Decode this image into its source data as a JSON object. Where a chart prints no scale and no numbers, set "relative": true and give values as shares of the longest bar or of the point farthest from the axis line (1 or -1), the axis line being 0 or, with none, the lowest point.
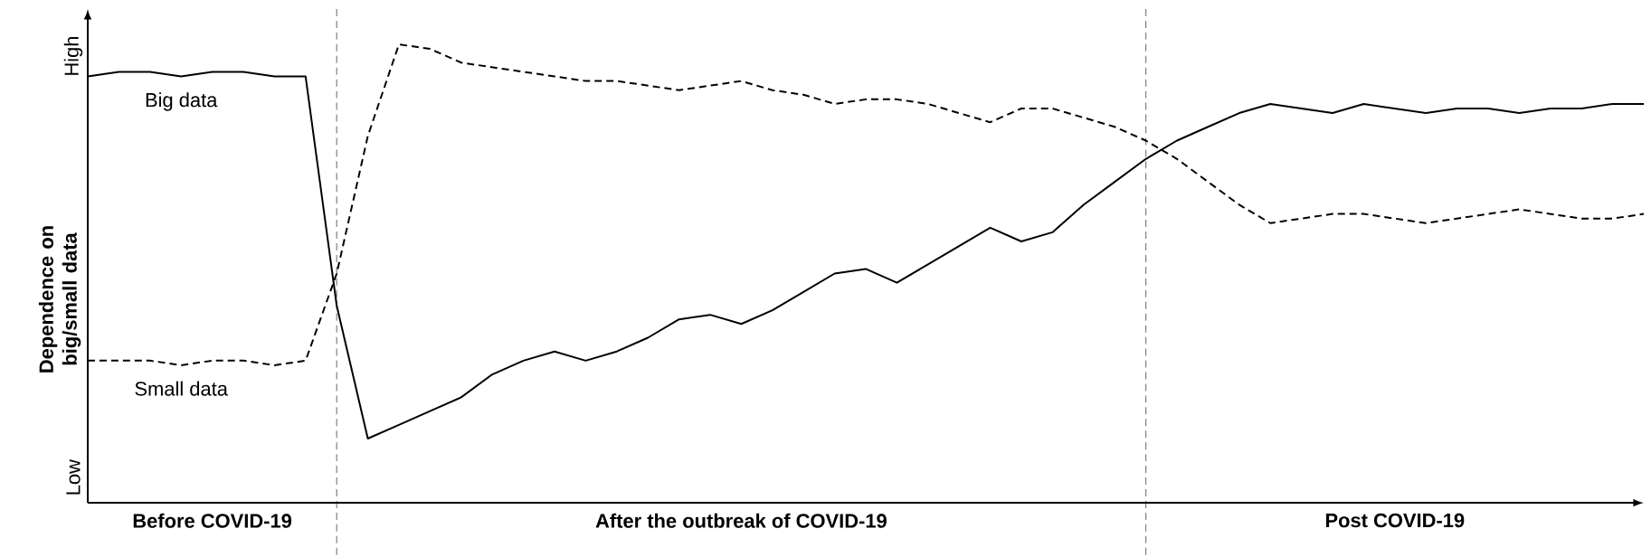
{
  "chart_data": {
    "type": "line",
    "relative": true,
    "ylabel": "Dependence on big/small data",
    "annotations": [
      "High",
      "Low"
    ],
    "categories": [
      null,
      null,
      null,
      null,
      "Before COVID-19",
      null,
      null,
      null,
      null,
      null,
      null,
      null,
      null,
      null,
      null,
      null,
      null,
      null,
      null,
      null,
      null,
      "After the outbreak of COVID-19",
      null,
      null,
      null,
      null,
      null,
      null,
      null,
      null,
      null,
      null,
      null,
      null,
      null,
      null,
      null,
      null,
      null,
      null,
      null,
      null,
      "Post COVID-19",
      null,
      null,
      null,
      null,
      null,
      null,
      null,
      null
    ],
    "series": [
      {
        "name": "Big data",
        "color": "#000000",
        "line_style": "solid",
        "values": [
          0.93,
          0.94,
          0.94,
          0.93,
          0.94,
          0.94,
          0.93,
          0.93,
          0.43,
          0.14,
          0.17,
          0.2,
          0.23,
          0.28,
          0.31,
          0.33,
          0.31,
          0.33,
          0.36,
          0.4,
          0.41,
          0.39,
          0.42,
          0.46,
          0.5,
          0.51,
          0.48,
          0.52,
          0.56,
          0.6,
          0.57,
          0.59,
          0.65,
          0.7,
          0.75,
          0.79,
          0.82,
          0.85,
          0.87,
          0.86,
          0.85,
          0.87,
          0.86,
          0.85,
          0.86,
          0.86,
          0.85,
          0.86,
          0.86,
          0.87,
          0.87
        ]
      },
      {
        "name": "Small data",
        "color": "#000000",
        "line_style": "dashed",
        "values": [
          0.31,
          0.31,
          0.31,
          0.3,
          0.31,
          0.31,
          0.3,
          0.31,
          0.5,
          0.8,
          1.0,
          0.99,
          0.96,
          0.95,
          0.94,
          0.93,
          0.92,
          0.92,
          0.91,
          0.9,
          0.91,
          0.92,
          0.9,
          0.89,
          0.87,
          0.88,
          0.88,
          0.87,
          0.85,
          0.83,
          0.86,
          0.86,
          0.84,
          0.82,
          0.79,
          0.75,
          0.7,
          0.65,
          0.61,
          0.62,
          0.63,
          0.63,
          0.62,
          0.61,
          0.62,
          0.63,
          0.64,
          0.63,
          0.62,
          0.62,
          0.63
        ]
      }
    ]
  }
}
